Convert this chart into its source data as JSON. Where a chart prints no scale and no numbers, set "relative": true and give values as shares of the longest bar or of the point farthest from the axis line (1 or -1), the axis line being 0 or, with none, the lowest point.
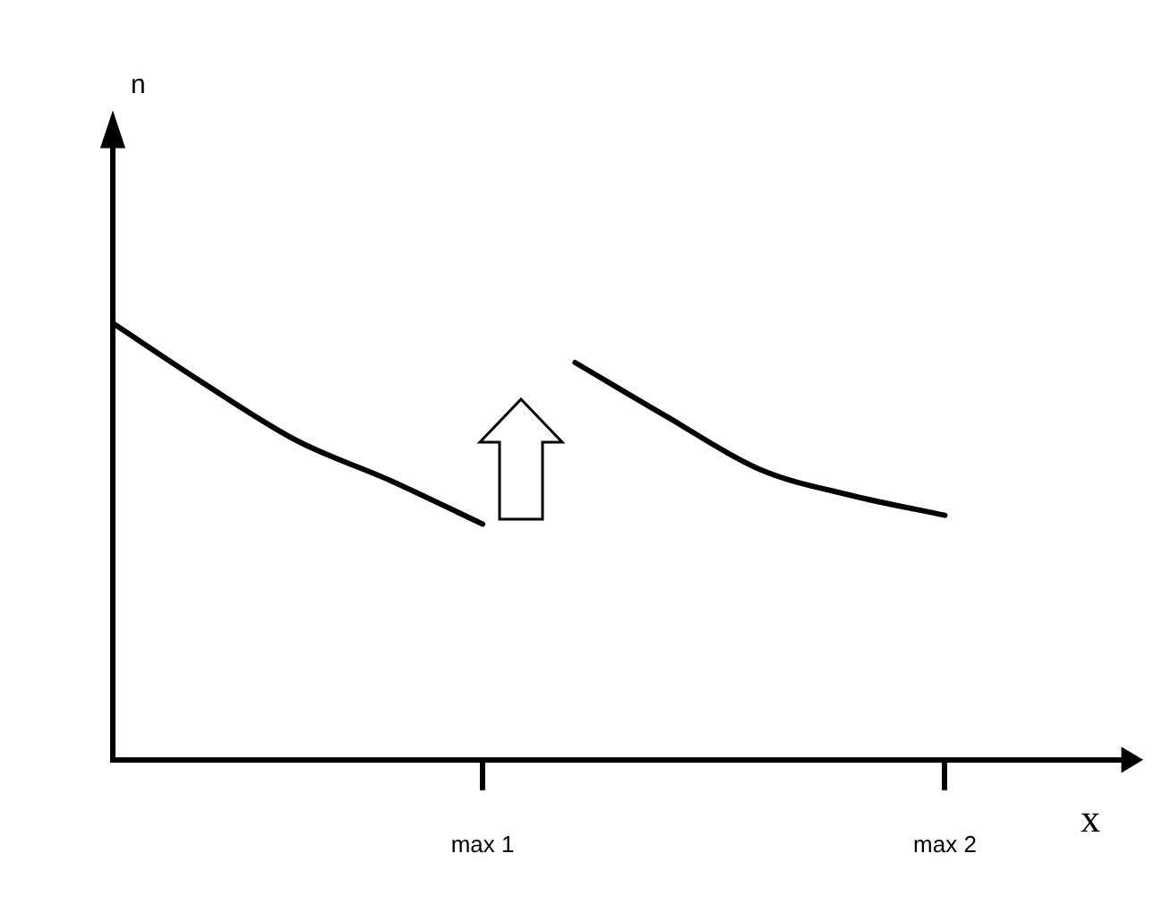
{
  "chart_data": {
    "type": "line",
    "relative": true,
    "xlabel": "x",
    "annotations": [
      "n"
    ],
    "categories": [
      null,
      null,
      null,
      null,
      "max 1",
      null,
      null,
      null,
      null,
      "max 2",
      null,
      null
    ],
    "series": [
      {
        "color": "#000000",
        "values": [
          1.0,
          0.86,
          0.73,
          0.64,
          0.54,
          null,
          null,
          null,
          null,
          null,
          null,
          null
        ]
      },
      {
        "color": "#000000",
        "values": [
          null,
          null,
          null,
          null,
          null,
          0.91,
          0.785,
          0.665,
          0.605,
          0.56,
          null,
          null
        ]
      }
    ],
    "grid": false,
    "legend": false,
    "marker": "none",
    "line_style": "solid"
  }
}
